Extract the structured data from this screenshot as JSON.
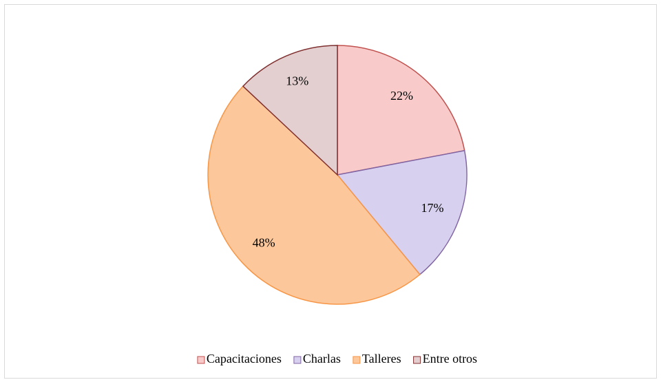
{
  "chart_data": {
    "type": "pie",
    "categories": [
      "Capacitaciones",
      "Charlas",
      "Talleres",
      "Entre otros"
    ],
    "values": [
      22,
      17,
      48,
      13
    ],
    "value_labels": [
      "22%",
      "17%",
      "48%",
      "13%"
    ],
    "colors": [
      "#f9caca",
      "#d8d0ef",
      "#fcc79a",
      "#e3cfcf"
    ],
    "edge_colors": [
      "#c0504d",
      "#8064a2",
      "#f79646",
      "#7f2f2f"
    ],
    "legend": "bottom"
  }
}
